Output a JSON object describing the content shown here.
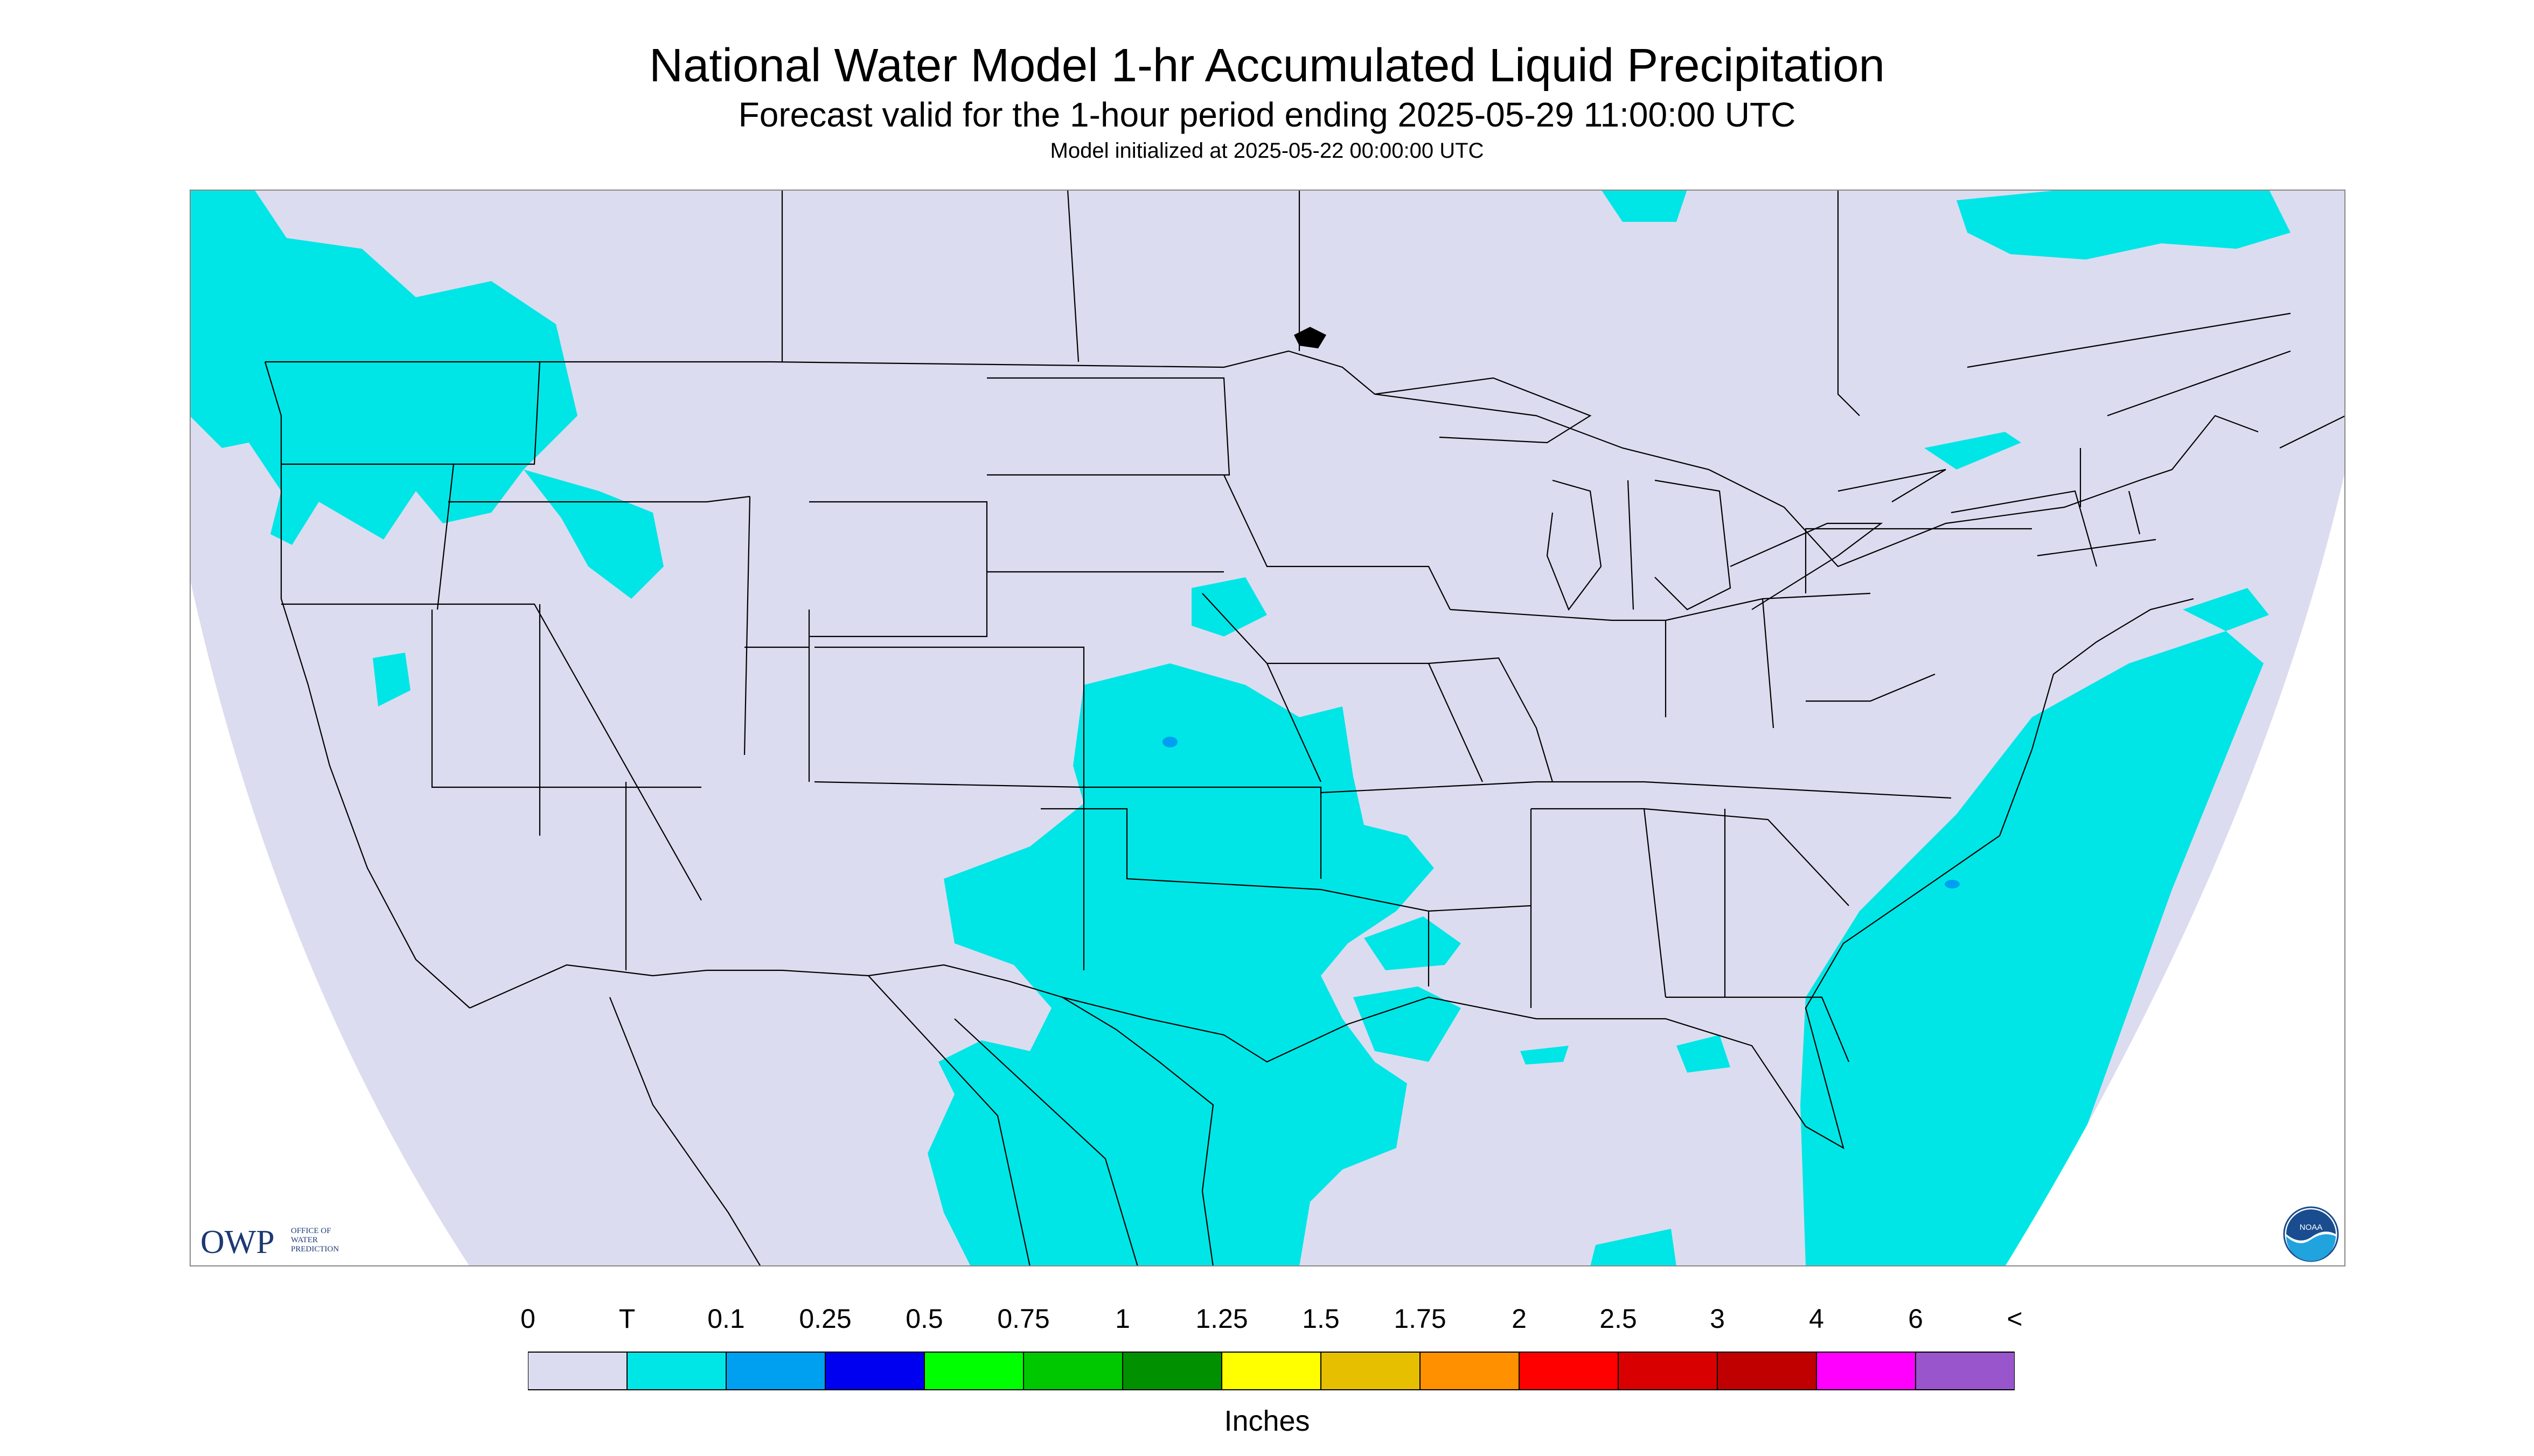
{
  "title": "National Water Model 1-hr Accumulated Liquid Precipitation",
  "subtitle": "Forecast valid for the 1-hour period ending 2025-05-29 11:00:00 UTC",
  "init_line": "Model initialized at 2025-05-22 00:00:00 UTC",
  "legend": {
    "units": "Inches",
    "ticks": [
      "0",
      "T",
      "0.1",
      "0.25",
      "0.5",
      "0.75",
      "1",
      "1.25",
      "1.5",
      "1.75",
      "2",
      "2.5",
      "3",
      "4",
      "6",
      "<"
    ],
    "colors": [
      "#dcdcf0",
      "#00e6e6",
      "#00a0f0",
      "#0000f0",
      "#00ff00",
      "#00c800",
      "#009000",
      "#ffff00",
      "#e6c000",
      "#ff9000",
      "#ff0000",
      "#d80000",
      "#c00000",
      "#ff00ff",
      "#9955cc"
    ]
  },
  "map_colors": {
    "background": "#dcdcf0",
    "precip_trace": "#00e6e6",
    "precip_0_1": "#00a0f0",
    "outside": "#ffffff",
    "boundaries": "#000000"
  },
  "logos": {
    "owp": "OWP",
    "owp_caption": [
      "OFFICE OF",
      "WATER",
      "PREDICTION"
    ],
    "noaa": "NOAA"
  }
}
